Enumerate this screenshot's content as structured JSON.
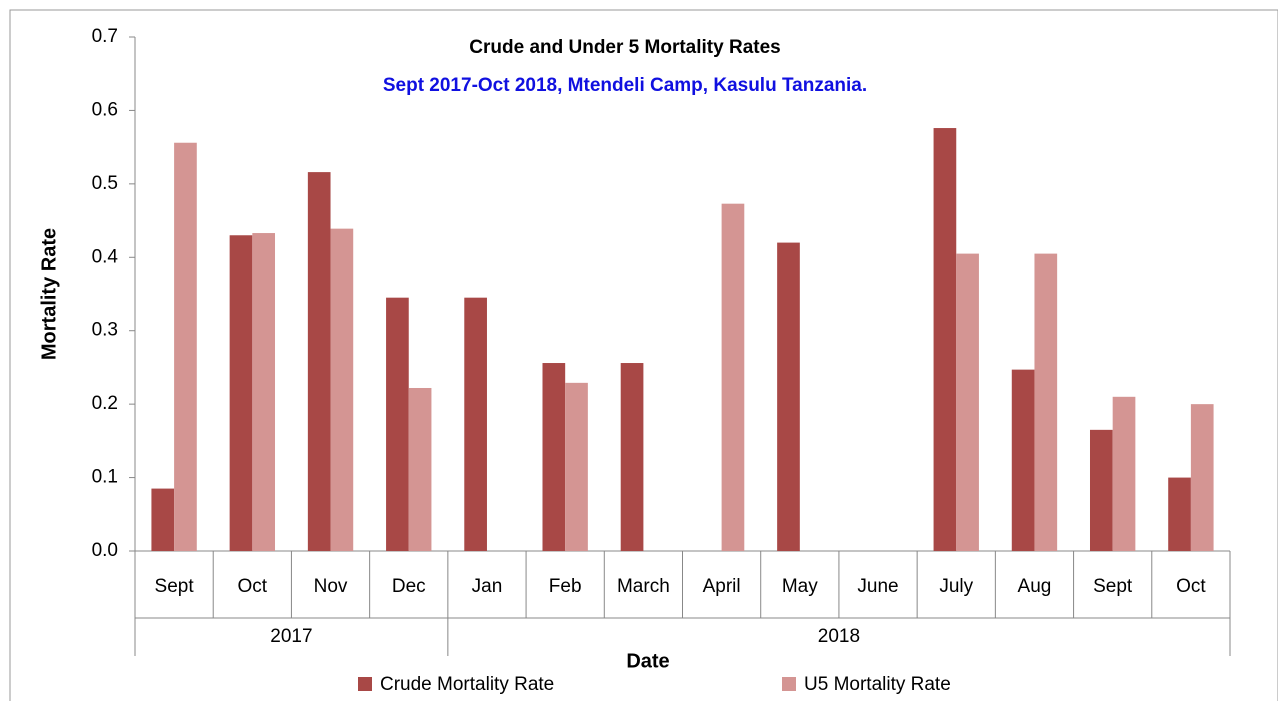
{
  "chart_data": {
    "type": "bar",
    "title": "Crude and Under 5 Mortality Rates",
    "subtitle": "Sept 2017-Oct 2018, Mtendeli Camp, Kasulu Tanzania.",
    "x_label": "Date",
    "y_label": "Mortality Rate",
    "categories": [
      "Sept",
      "Oct",
      "Nov",
      "Dec",
      "Jan",
      "Feb",
      "March",
      "April",
      "May",
      "June",
      "July",
      "Aug",
      "Sept",
      "Oct"
    ],
    "years": [
      "2017",
      "2017",
      "2017",
      "2017",
      "2018",
      "2018",
      "2018",
      "2018",
      "2018",
      "2018",
      "2018",
      "2018",
      "2018",
      "2018"
    ],
    "series": [
      {
        "name": "Crude Mortality Rate",
        "color": "#a84846",
        "values": [
          0.085,
          0.43,
          0.516,
          0.345,
          0.345,
          0.256,
          0.256,
          null,
          0.42,
          null,
          0.576,
          0.247,
          0.165,
          0.1
        ]
      },
      {
        "name": "U5 Mortality Rate",
        "color": "#d49593",
        "values": [
          0.556,
          0.433,
          0.439,
          0.222,
          null,
          0.229,
          null,
          0.473,
          null,
          null,
          0.405,
          0.405,
          0.21,
          0.2
        ]
      }
    ],
    "ylim": [
      0,
      0.7
    ],
    "yticks": [
      {
        "value": 0,
        "label": "0.0"
      },
      0.1,
      0.2,
      0.3,
      0.4,
      0.5,
      0.6,
      0.7
    ],
    "grid": false,
    "legend": "bottom"
  }
}
